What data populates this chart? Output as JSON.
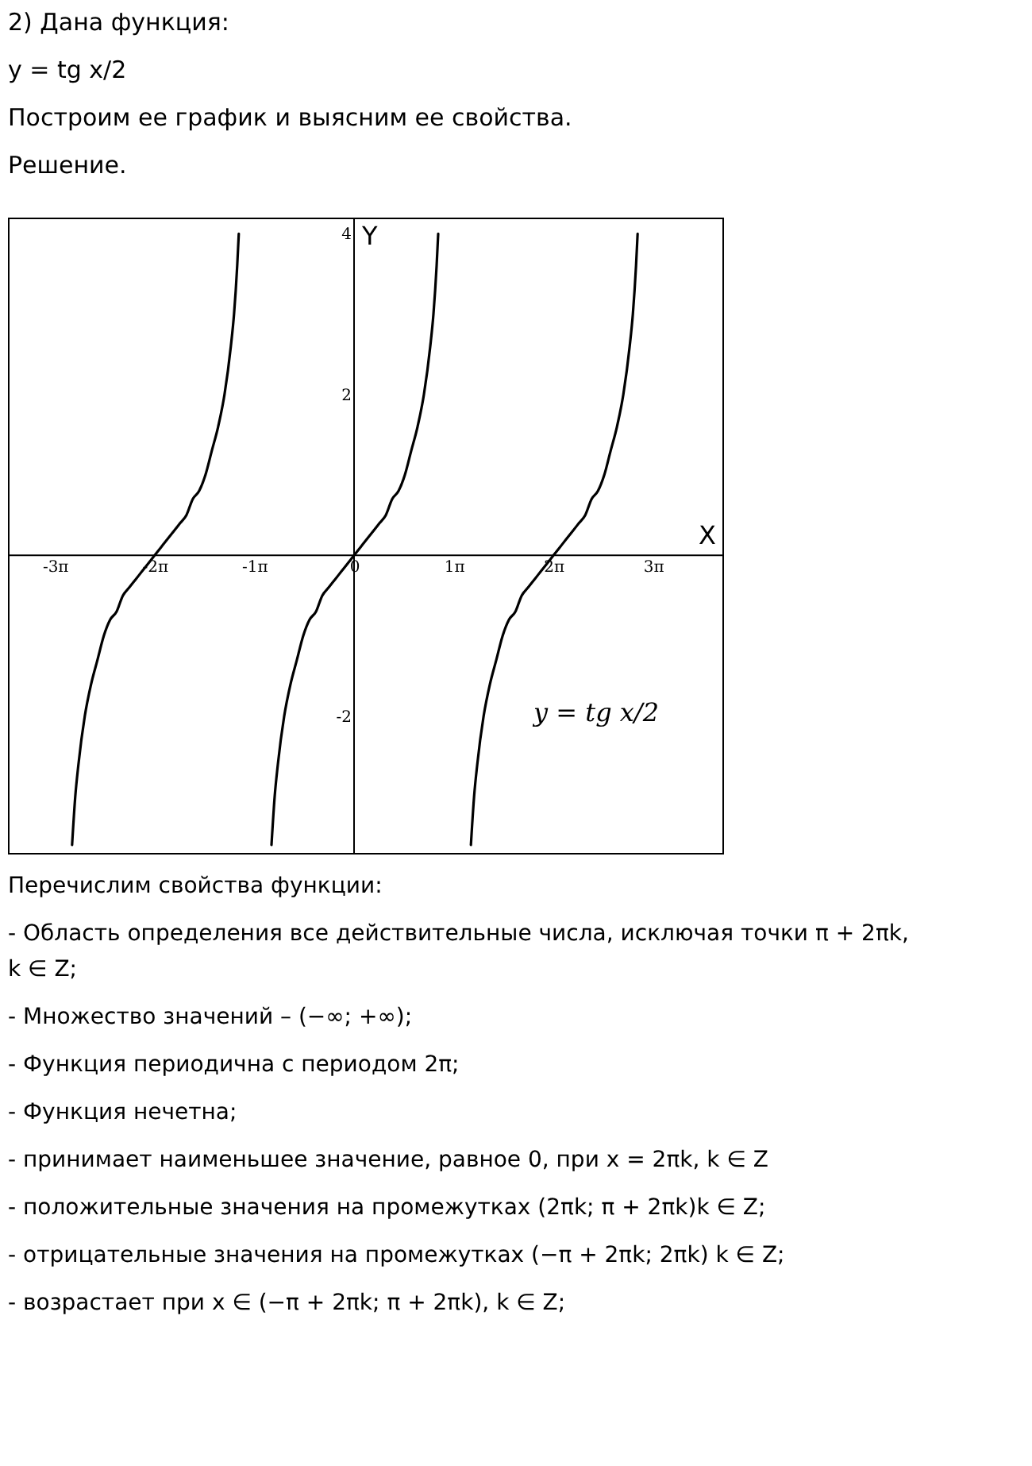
{
  "chart_data": {
    "type": "line",
    "title": "2) Дана функция:",
    "subtitle": "y = tg x/2",
    "xlabel": "X",
    "ylabel": "Y",
    "xlim": [
      -10.9,
      11.6
    ],
    "ylim": [
      -3.7,
      4.2
    ],
    "xticks": [
      {
        "value": -9.42,
        "label": "-3π"
      },
      {
        "value": -6.28,
        "label": "-2π"
      },
      {
        "value": -3.14,
        "label": "-1π"
      },
      0,
      {
        "value": 3.14,
        "label": "1π"
      },
      {
        "value": 6.28,
        "label": "2π"
      },
      {
        "value": 9.42,
        "label": "3π"
      }
    ],
    "yticks": [
      -2,
      2,
      4
    ],
    "grid": false,
    "marker": "none",
    "line_style": "solid",
    "series": [
      {
        "color": "#000000",
        "x": [
          -8.88,
          -8.78,
          -8.68,
          -8.48,
          -8.28,
          -8.08,
          -7.88,
          -7.68,
          -7.48,
          -7.28,
          -7.08,
          -6.88,
          -6.68,
          -6.48,
          -6.28,
          -6.08,
          -5.88,
          -5.68,
          -5.48,
          -5.28,
          -5.08,
          -4.88,
          -4.68,
          -4.48,
          -4.28,
          -4.08,
          -3.88,
          -3.78,
          -3.68,
          -3.63
        ],
        "values": [
          -3.6,
          -3.0,
          -2.6,
          -2.0,
          -1.6,
          -1.3,
          -1.0,
          -0.8,
          -0.7,
          -0.5,
          -0.4,
          -0.3,
          -0.2,
          -0.1,
          0,
          0.1,
          0.2,
          0.3,
          0.4,
          0.5,
          0.7,
          0.8,
          1.0,
          1.3,
          1.6,
          2.0,
          2.6,
          3.0,
          3.6,
          4.0
        ]
      },
      {
        "color": "#000000",
        "x": [
          -2.6,
          -2.5,
          -2.4,
          -2.2,
          -2.0,
          -1.8,
          -1.6,
          -1.4,
          -1.2,
          -1.0,
          -0.8,
          -0.6,
          -0.4,
          -0.2,
          0,
          0.2,
          0.4,
          0.6,
          0.8,
          1.0,
          1.2,
          1.4,
          1.6,
          1.8,
          2.0,
          2.2,
          2.4,
          2.5,
          2.6,
          2.65
        ],
        "values": [
          -3.6,
          -3.0,
          -2.6,
          -2.0,
          -1.6,
          -1.3,
          -1.0,
          -0.8,
          -0.7,
          -0.5,
          -0.4,
          -0.3,
          -0.2,
          -0.1,
          0,
          0.1,
          0.2,
          0.3,
          0.4,
          0.5,
          0.7,
          0.8,
          1.0,
          1.3,
          1.6,
          2.0,
          2.6,
          3.0,
          3.6,
          4.0
        ]
      },
      {
        "color": "#000000",
        "x": [
          3.68,
          3.78,
          3.88,
          4.08,
          4.28,
          4.48,
          4.68,
          4.88,
          5.08,
          5.28,
          5.48,
          5.68,
          5.88,
          6.08,
          6.28,
          6.48,
          6.68,
          6.88,
          7.08,
          7.28,
          7.48,
          7.68,
          7.88,
          8.08,
          8.28,
          8.48,
          8.68,
          8.78,
          8.88,
          8.93
        ],
        "values": [
          -3.6,
          -3.0,
          -2.6,
          -2.0,
          -1.6,
          -1.3,
          -1.0,
          -0.8,
          -0.7,
          -0.5,
          -0.4,
          -0.3,
          -0.2,
          -0.1,
          0,
          0.1,
          0.2,
          0.3,
          0.4,
          0.5,
          0.7,
          0.8,
          1.0,
          1.3,
          1.6,
          2.0,
          2.6,
          3.0,
          3.6,
          4.0
        ]
      }
    ],
    "annotations": [
      "Построим ее график  и выясним ее свойства.",
      "Решение.",
      "y = tg x/2",
      "Перечислим свойства функции:",
      "- Область определения все действительные числа, исключая точки π + 2πk, k ∈ Z;",
      "- Множество значений – (−∞; +∞);",
      "- Функция периодична с периодом 2π;",
      "- Функция нечетна;",
      "- принимает наименьшее значение, равное 0, при x = 2πk, k ∈ Z",
      "- положительные значения на промежутках (2πk;  π + 2πk)k ∈ Z;",
      "- отрицательные значения на промежутках (−π + 2πk; 2πk) k ∈ Z;",
      "- возрастает при x ∈ (−π + 2πk; π + 2πk), k ∈ Z;"
    ]
  }
}
